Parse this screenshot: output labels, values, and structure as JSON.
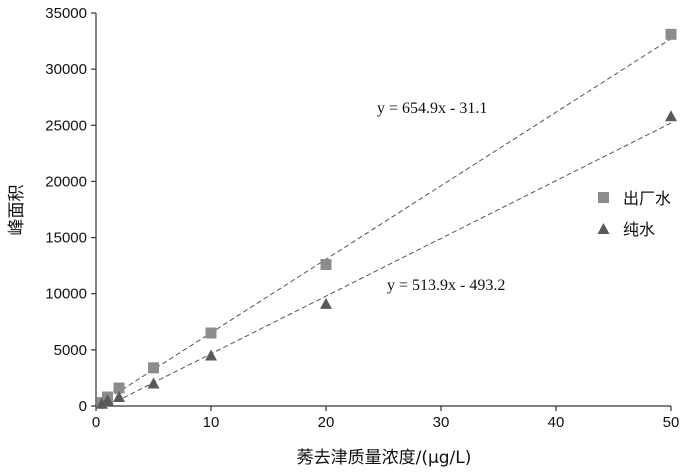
{
  "chart_data": {
    "type": "scatter",
    "xlabel": "莠去津质量浓度/(μg/L)",
    "ylabel": "峰面积",
    "xlim": [
      0,
      50
    ],
    "ylim": [
      0,
      35000
    ],
    "x_ticks": [
      0,
      10,
      20,
      30,
      40,
      50
    ],
    "y_ticks": [
      0,
      5000,
      10000,
      15000,
      20000,
      25000,
      30000,
      35000
    ],
    "grid": false,
    "legend_position": "right",
    "series": [
      {
        "name": "出厂水",
        "marker": "square",
        "color": "#8c8c8c",
        "x": [
          0.5,
          1,
          2,
          5,
          10,
          20,
          50
        ],
        "y": [
          300,
          800,
          1600,
          3400,
          6500,
          12600,
          33100
        ],
        "trendline": {
          "slope": 654.9,
          "intercept": -31.1,
          "label": "y = 654.9x - 31.1"
        }
      },
      {
        "name": "纯水",
        "marker": "triangle",
        "color": "#595959",
        "x": [
          0.5,
          1,
          2,
          5,
          10,
          20,
          50
        ],
        "y": [
          200,
          500,
          800,
          2000,
          4500,
          9100,
          25800
        ],
        "trendline": {
          "slope": 513.9,
          "intercept": -493.2,
          "label": "y = 513.9x - 493.2"
        }
      }
    ]
  }
}
